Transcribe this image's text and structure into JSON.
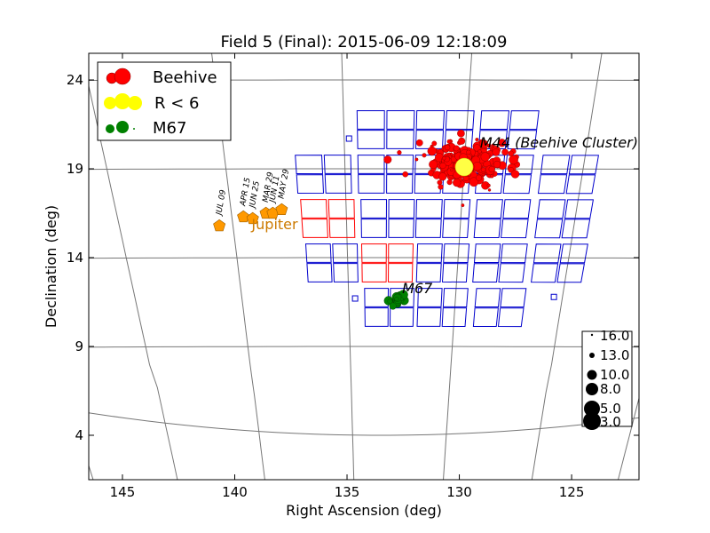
{
  "chart_data": {
    "type": "scatter",
    "title": "Field 5 (Final): 2015-06-09 12:18:09",
    "xlabel": "Right Ascension (deg)",
    "ylabel": "Declination (deg)",
    "xlim": [
      146.5,
      122
    ],
    "ylim": [
      1.5,
      25.5
    ],
    "xticks": [
      "145",
      "140",
      "135",
      "130",
      "125"
    ],
    "xtick_values": [
      145,
      140,
      135,
      130,
      125
    ],
    "yticks": [
      "24",
      "19",
      "14",
      "9",
      "4"
    ],
    "ytick_values": [
      24,
      19,
      14,
      9,
      4
    ],
    "grid": "curved RA/Dec graticule",
    "legend": {
      "placement": "top-left",
      "entries": [
        {
          "label": "Beehive",
          "color": "#ff0000"
        },
        {
          "label": "R < 6",
          "color": "#ffff00"
        },
        {
          "label": "M67",
          "color": "#008000"
        }
      ]
    },
    "size_legend": {
      "placement": "bottom-right",
      "labels": [
        "16.0",
        "13.0",
        "10.0",
        "8.0",
        "5.0",
        "3.0"
      ]
    },
    "annotations": [
      {
        "text": "M44 (Beehive Cluster)",
        "ra": 129.4,
        "dec": 20.2
      },
      {
        "text": "M67",
        "ra": 132.5,
        "dec": 12.0
      },
      {
        "text": "Jupiter",
        "ra": 139.2,
        "dec": 15.6,
        "color": "#cc7a00"
      }
    ],
    "jupiter_track": {
      "color": "#ff9900",
      "points": [
        {
          "label": "JUL 09",
          "ra": 140.6,
          "dec": 15.8
        },
        {
          "label": "APR 15",
          "ra": 139.5,
          "dec": 16.3
        },
        {
          "label": "JUN 25",
          "ra": 139.1,
          "dec": 16.2
        },
        {
          "label": "MAR 29",
          "ra": 138.5,
          "dec": 16.5
        },
        {
          "label": "JUN 11",
          "ra": 138.2,
          "dec": 16.5
        },
        {
          "label": "MAY 29",
          "ra": 137.8,
          "dec": 16.7
        }
      ]
    },
    "clusters": [
      {
        "name": "Beehive",
        "color": "#ff0000",
        "center_ra": 130.0,
        "center_dec": 19.3,
        "spread_ra": 1.5,
        "spread_dec": 1.0,
        "count": 260
      },
      {
        "name": "M67",
        "color": "#008000",
        "center_ra": 132.7,
        "center_dec": 11.6,
        "spread_ra": 0.25,
        "spread_dec": 0.25,
        "count": 30
      }
    ],
    "bright_star": {
      "label": "R < 6",
      "ra": 130.0,
      "dec": 19.1,
      "color": "#ffff44"
    },
    "fov_modules": [
      {
        "ra": 130.9,
        "dec": 21.2,
        "color": "#0000cc"
      },
      {
        "ra": 128.3,
        "dec": 21.2,
        "color": "#0000cc"
      },
      {
        "ra": 133.3,
        "dec": 21.2,
        "color": "#0000cc"
      },
      {
        "ra": 125.6,
        "dec": 18.7,
        "color": "#0000cc"
      },
      {
        "ra": 128.3,
        "dec": 18.7,
        "color": "#0000cc"
      },
      {
        "ra": 130.9,
        "dec": 18.7,
        "color": "#0000cc"
      },
      {
        "ra": 133.3,
        "dec": 18.7,
        "color": "#0000cc"
      },
      {
        "ra": 135.9,
        "dec": 18.7,
        "color": "#0000cc"
      },
      {
        "ra": 125.5,
        "dec": 16.2,
        "color": "#0000cc"
      },
      {
        "ra": 128.2,
        "dec": 16.2,
        "color": "#0000cc"
      },
      {
        "ra": 130.8,
        "dec": 16.2,
        "color": "#0000cc"
      },
      {
        "ra": 133.2,
        "dec": 16.2,
        "color": "#0000cc"
      },
      {
        "ra": 135.8,
        "dec": 16.2,
        "color": "#ff0000"
      },
      {
        "ra": 125.4,
        "dec": 13.7,
        "color": "#0000cc"
      },
      {
        "ra": 128.1,
        "dec": 13.7,
        "color": "#0000cc"
      },
      {
        "ra": 130.7,
        "dec": 13.7,
        "color": "#0000cc"
      },
      {
        "ra": 133.2,
        "dec": 13.7,
        "color": "#ff0000"
      },
      {
        "ra": 135.7,
        "dec": 13.7,
        "color": "#0000cc"
      },
      {
        "ra": 127.9,
        "dec": 11.2,
        "color": "#0000cc"
      },
      {
        "ra": 130.6,
        "dec": 11.2,
        "color": "#0000cc"
      },
      {
        "ra": 133.1,
        "dec": 11.2,
        "color": "#0000cc"
      }
    ],
    "fine_guide_sensors": [
      {
        "ra": 134.8,
        "dec": 20.7
      },
      {
        "ra": 134.7,
        "dec": 11.7
      },
      {
        "ra": 125.4,
        "dec": 11.8
      }
    ]
  }
}
